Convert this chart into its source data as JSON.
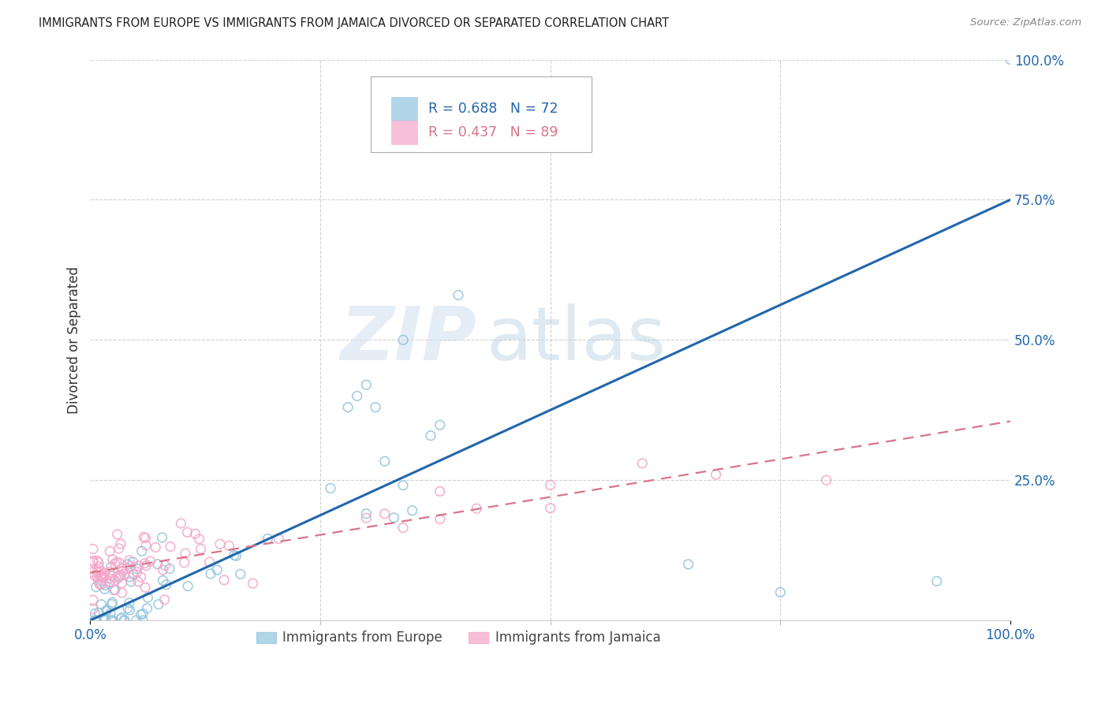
{
  "title": "IMMIGRANTS FROM EUROPE VS IMMIGRANTS FROM JAMAICA DIVORCED OR SEPARATED CORRELATION CHART",
  "source": "Source: ZipAtlas.com",
  "ylabel": "Divorced or Separated",
  "xlim": [
    0,
    1
  ],
  "ylim": [
    0,
    1
  ],
  "xtick_labels": [
    "0.0%",
    "100.0%"
  ],
  "xtick_positions": [
    0,
    1
  ],
  "ytick_labels": [
    "25.0%",
    "50.0%",
    "75.0%",
    "100.0%"
  ],
  "ytick_positions": [
    0.25,
    0.5,
    0.75,
    1.0
  ],
  "watermark_zip": "ZIP",
  "watermark_atlas": "atlas",
  "europe_color": "#92c5de",
  "jamaica_color": "#f4a6c8",
  "europe_line_color": "#2166ac",
  "jamaica_line_color": "#d9748a",
  "background_color": "#ffffff",
  "grid_color": "#cccccc",
  "eu_line_start_y": 0.0,
  "eu_line_end_y": 0.75,
  "ja_line_start_y": 0.085,
  "ja_line_end_y": 0.355,
  "legend_R_eu": "R = 0.688",
  "legend_N_eu": "N = 72",
  "legend_R_ja": "R = 0.437",
  "legend_N_ja": "N = 89",
  "legend_label_eu": "Immigrants from Europe",
  "legend_label_ja": "Immigrants from Jamaica"
}
